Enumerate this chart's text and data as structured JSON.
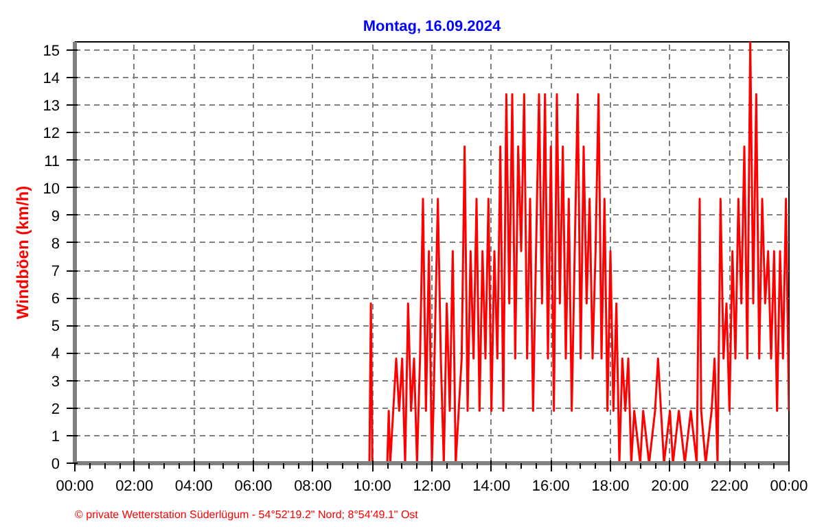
{
  "chart_data": {
    "type": "line",
    "title": "Montag, 16.09.2024",
    "ylabel": "Windböen (km/h)",
    "color": "#ff0000",
    "x": [
      0,
      9.9,
      9.95,
      10.0,
      10.5,
      10.55,
      10.6,
      10.8,
      10.9,
      11.0,
      11.1,
      11.2,
      11.3,
      11.4,
      11.5,
      11.6,
      11.7,
      11.8,
      11.9,
      12.0,
      12.05,
      12.2,
      12.3,
      12.4,
      12.5,
      12.6,
      12.7,
      12.8,
      12.9,
      13.0,
      13.1,
      13.2,
      13.3,
      13.4,
      13.5,
      13.6,
      13.7,
      13.8,
      13.9,
      14.0,
      14.1,
      14.2,
      14.3,
      14.4,
      14.5,
      14.6,
      14.7,
      14.8,
      14.9,
      15.0,
      15.1,
      15.2,
      15.3,
      15.4,
      15.5,
      15.6,
      15.7,
      15.8,
      15.9,
      16.0,
      16.1,
      16.2,
      16.3,
      16.4,
      16.5,
      16.6,
      16.7,
      16.8,
      16.9,
      17.0,
      17.1,
      17.2,
      17.3,
      17.4,
      17.5,
      17.6,
      17.7,
      17.8,
      17.9,
      18.0,
      18.1,
      18.2,
      18.3,
      18.4,
      18.5,
      18.6,
      18.7,
      18.8,
      19.0,
      19.1,
      19.3,
      19.5,
      19.6,
      19.7,
      19.8,
      20.0,
      20.1,
      20.3,
      20.5,
      20.7,
      20.9,
      21.0,
      21.05,
      21.2,
      21.4,
      21.5,
      21.6,
      21.7,
      21.8,
      21.9,
      22.0,
      22.1,
      22.2,
      22.3,
      22.4,
      22.5,
      22.6,
      22.7,
      22.8,
      22.9,
      23.0,
      23.1,
      23.2,
      23.3,
      23.4,
      23.5,
      23.6,
      23.7,
      23.8,
      23.9,
      24.0
    ],
    "values": [
      0,
      0,
      5.8,
      0,
      0,
      1.9,
      0,
      3.8,
      1.9,
      3.8,
      0,
      5.8,
      1.9,
      3.8,
      0,
      3.8,
      9.6,
      1.9,
      7.7,
      0,
      1.9,
      9.6,
      3.8,
      0,
      5.8,
      1.9,
      7.7,
      0,
      1.9,
      3.8,
      11.5,
      1.9,
      7.7,
      3.8,
      9.6,
      1.9,
      7.7,
      3.8,
      9.6,
      1.9,
      7.7,
      3.8,
      11.5,
      1.9,
      13.4,
      5.8,
      13.4,
      3.8,
      11.5,
      7.7,
      13.4,
      3.8,
      9.6,
      1.9,
      7.7,
      13.4,
      5.8,
      13.4,
      3.8,
      11.5,
      1.9,
      13.4,
      5.8,
      11.5,
      3.8,
      9.6,
      1.9,
      7.7,
      13.4,
      3.8,
      11.5,
      5.8,
      9.6,
      3.8,
      7.7,
      13.4,
      3.8,
      9.6,
      1.9,
      7.7,
      1.9,
      5.8,
      0,
      3.8,
      1.9,
      3.8,
      0,
      1.9,
      0,
      1.9,
      0,
      1.9,
      3.8,
      1.9,
      0,
      1.9,
      0,
      1.9,
      0,
      1.9,
      0,
      9.6,
      1.9,
      0,
      1.9,
      3.8,
      0,
      9.6,
      3.8,
      5.8,
      1.9,
      7.7,
      3.8,
      9.6,
      5.8,
      11.5,
      3.8,
      15.3,
      5.8,
      13.4,
      3.8,
      9.6,
      5.8,
      7.7,
      3.8,
      7.7,
      1.9,
      7.7,
      3.8,
      9.6,
      1.9
    ],
    "xlim": [
      0,
      24
    ],
    "xticks": [
      {
        "value": 0,
        "label": "00:00"
      },
      {
        "value": 2,
        "label": "02:00"
      },
      {
        "value": 4,
        "label": "04:00"
      },
      {
        "value": 6,
        "label": "06:00"
      },
      {
        "value": 8,
        "label": "08:00"
      },
      {
        "value": 10,
        "label": "10:00"
      },
      {
        "value": 12,
        "label": "12:00"
      },
      {
        "value": 14,
        "label": "14:00"
      },
      {
        "value": 16,
        "label": "16:00"
      },
      {
        "value": 18,
        "label": "18:00"
      },
      {
        "value": 20,
        "label": "20:00"
      },
      {
        "value": 22,
        "label": "22:00"
      },
      {
        "value": 24,
        "label": "00:00"
      }
    ],
    "ylim": [
      0,
      15.3
    ],
    "yticks": [
      0,
      1,
      2,
      3,
      4,
      5,
      6,
      7,
      8,
      9,
      10,
      11,
      12,
      13,
      14,
      15
    ],
    "grid": true,
    "line_style": "solid",
    "annotations": [
      "© private Wetterstation Süderlügum - 54°52'19.2\" Nord; 8°54'49.1\" Ost"
    ]
  }
}
